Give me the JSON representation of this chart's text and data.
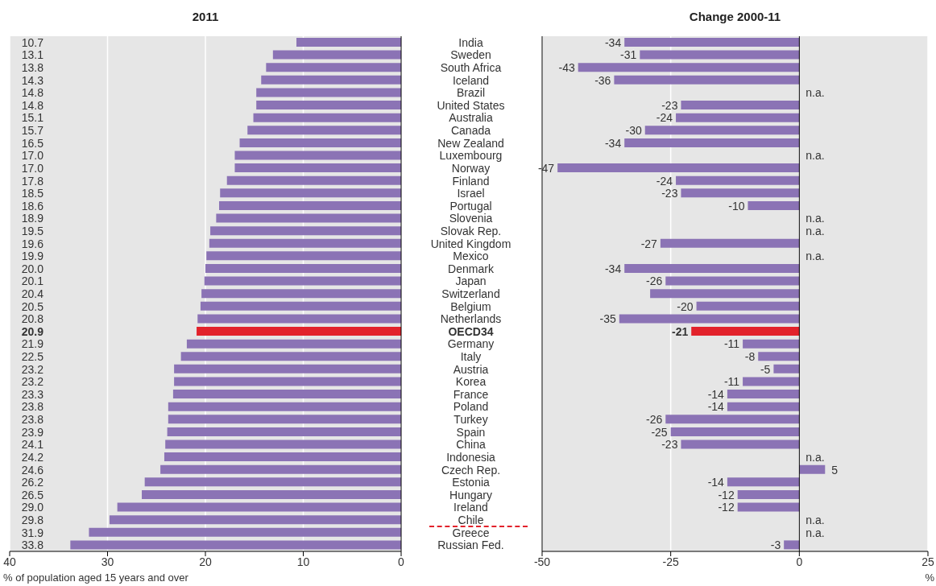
{
  "chart_data": [
    {
      "type": "bar",
      "orientation": "horizontal",
      "title": "2011",
      "xlabel": "% of population aged 15 years and over",
      "grid": "x",
      "xlim": [
        40,
        0
      ],
      "xticks": [
        40,
        30,
        20,
        10,
        0
      ],
      "categories": [
        "India",
        "Sweden",
        "South Africa",
        "Iceland",
        "Brazil",
        "United States",
        "Australia",
        "Canada",
        "New Zealand",
        "Luxembourg",
        "Norway",
        "Finland",
        "Israel",
        "Portugal",
        "Slovenia",
        "Slovak Rep.",
        "United Kingdom",
        "Mexico",
        "Denmark",
        "Japan",
        "Switzerland",
        "Belgium",
        "Netherlands",
        "OECD34",
        "Germany",
        "Italy",
        "Austria",
        "Korea",
        "France",
        "Poland",
        "Turkey",
        "Spain",
        "China",
        "Indonesia",
        "Czech Rep.",
        "Estonia",
        "Hungary",
        "Ireland",
        "Chile",
        "Greece",
        "Russian Fed."
      ],
      "values": [
        10.7,
        13.1,
        13.8,
        14.3,
        14.8,
        14.8,
        15.1,
        15.7,
        16.5,
        17.0,
        17.0,
        17.8,
        18.5,
        18.6,
        18.9,
        19.5,
        19.6,
        19.9,
        20.0,
        20.1,
        20.4,
        20.5,
        20.8,
        20.9,
        21.9,
        22.5,
        23.2,
        23.2,
        23.3,
        23.8,
        23.8,
        23.9,
        24.1,
        24.2,
        24.6,
        26.2,
        26.5,
        29.0,
        29.8,
        31.9,
        33.8
      ],
      "value_labels": [
        "10.7",
        "13.1",
        "13.8",
        "14.3",
        "14.8",
        "14.8",
        "15.1",
        "15.7",
        "16.5",
        "17.0",
        "17.0",
        "17.8",
        "18.5",
        "18.6",
        "18.9",
        "19.5",
        "19.6",
        "19.9",
        "20.0",
        "20.1",
        "20.4",
        "20.5",
        "20.8",
        "20.9",
        "21.9",
        "22.5",
        "23.2",
        "23.2",
        "23.3",
        "23.8",
        "23.8",
        "23.9",
        "24.1",
        "24.2",
        "24.6",
        "26.2",
        "26.5",
        "29.0",
        "29.8",
        "31.9",
        "33.8"
      ],
      "colors": [
        "#8b73b5",
        "#8b73b5",
        "#8b73b5",
        "#8b73b5",
        "#8b73b5",
        "#8b73b5",
        "#8b73b5",
        "#8b73b5",
        "#8b73b5",
        "#8b73b5",
        "#8b73b5",
        "#8b73b5",
        "#8b73b5",
        "#8b73b5",
        "#8b73b5",
        "#8b73b5",
        "#8b73b5",
        "#8b73b5",
        "#8b73b5",
        "#8b73b5",
        "#8b73b5",
        "#8b73b5",
        "#8b73b5",
        "#e2222b",
        "#8b73b5",
        "#8b73b5",
        "#8b73b5",
        "#8b73b5",
        "#8b73b5",
        "#8b73b5",
        "#8b73b5",
        "#8b73b5",
        "#8b73b5",
        "#8b73b5",
        "#8b73b5",
        "#8b73b5",
        "#8b73b5",
        "#8b73b5",
        "#8b73b5",
        "#8b73b5",
        "#8b73b5"
      ]
    },
    {
      "type": "bar",
      "orientation": "horizontal",
      "title": "Change 2000-11",
      "xlabel": "%",
      "tick_labels": "x",
      "grid": "x",
      "xlim": [
        -50,
        25
      ],
      "xticks": [
        -50,
        -25,
        0,
        25
      ],
      "ref_lines": [
        {
          "axis": "x",
          "value": 0,
          "color": "#000000"
        }
      ],
      "values": [
        -34,
        -31,
        -43,
        -36,
        null,
        -23,
        -24,
        -30,
        -34,
        null,
        -47,
        -24,
        -23,
        -10,
        null,
        null,
        -27,
        null,
        -34,
        -26,
        -29,
        -20,
        -35,
        -21,
        -11,
        -8,
        -5,
        -11,
        -14,
        -14,
        -26,
        -25,
        -23,
        null,
        5,
        -14,
        -12,
        -12,
        null,
        null,
        -3
      ],
      "value_labels": [
        "-34",
        "-31",
        "-43",
        "-36",
        "n.a.",
        "-23",
        "-24",
        "-30",
        "-34",
        "n.a.",
        "-47",
        "-24",
        "-23",
        "-10",
        "n.a.",
        "n.a.",
        "-27",
        "n.a.",
        "-34",
        "-26",
        null,
        "-20",
        "-35",
        "-21",
        "-11",
        "-8",
        "-5",
        "-11",
        "-14",
        "-14",
        "-26",
        "-25",
        "-23",
        "n.a.",
        "5",
        "-14",
        "-12",
        "-12",
        "n.a.",
        "n.a.",
        "-3"
      ],
      "colors": [
        "#8b73b5",
        "#8b73b5",
        "#8b73b5",
        "#8b73b5",
        "#8b73b5",
        "#8b73b5",
        "#8b73b5",
        "#8b73b5",
        "#8b73b5",
        "#8b73b5",
        "#8b73b5",
        "#8b73b5",
        "#8b73b5",
        "#8b73b5",
        "#8b73b5",
        "#8b73b5",
        "#8b73b5",
        "#8b73b5",
        "#8b73b5",
        "#8b73b5",
        "#8b73b5",
        "#8b73b5",
        "#8b73b5",
        "#e2222b",
        "#8b73b5",
        "#8b73b5",
        "#8b73b5",
        "#8b73b5",
        "#8b73b5",
        "#8b73b5",
        "#8b73b5",
        "#8b73b5",
        "#8b73b5",
        "#8b73b5",
        "#8b73b5",
        "#8b73b5",
        "#8b73b5",
        "#8b73b5",
        "#8b73b5",
        "#8b73b5",
        "#8b73b5"
      ]
    }
  ]
}
